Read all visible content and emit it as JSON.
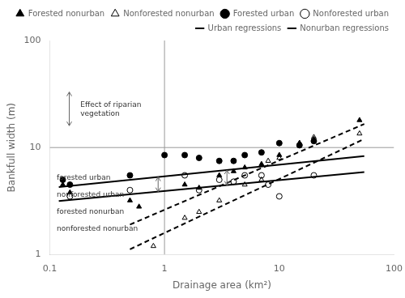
{
  "chart_data": {
    "type": "scatter",
    "x_label": "Drainage area (km²)",
    "y_label": "Bankfull width (m)",
    "log": true,
    "xlim": [
      0.1,
      100
    ],
    "ylim": [
      1,
      100
    ],
    "xticks": [
      0.1,
      1,
      10,
      100
    ],
    "yticks": [
      1,
      10,
      100
    ],
    "grid": false,
    "legend": "upper right",
    "series": [
      {
        "name": "Forested nonurban",
        "type": "scatter",
        "marker": "triangle",
        "color": "#000000",
        "x": [
          0.13,
          0.15,
          0.5,
          0.6,
          1.5,
          2.0,
          3.0,
          4.0,
          5.0,
          7.0,
          10.0,
          15.0,
          20.0,
          50.0
        ],
        "values": [
          4.5,
          3.8,
          3.2,
          2.8,
          4.5,
          4.2,
          5.5,
          6.0,
          6.5,
          7.0,
          8.5,
          11.0,
          12.0,
          18.0
        ]
      },
      {
        "name": "Nonforested nonurban",
        "type": "scatter",
        "marker": "open-triangle",
        "color": "#000000",
        "x": [
          0.8,
          1.5,
          2.0,
          3.0,
          5.0,
          7.0,
          8.0,
          10.0,
          15.0,
          20.0,
          50.0
        ],
        "values": [
          1.2,
          2.2,
          2.5,
          3.2,
          4.5,
          5.0,
          7.5,
          8.0,
          11.0,
          12.5,
          13.5
        ]
      },
      {
        "name": "Forested urban",
        "type": "scatter",
        "marker": "circle",
        "color": "#000000",
        "x": [
          0.13,
          0.15,
          0.5,
          1.0,
          1.5,
          2.0,
          3.0,
          4.0,
          5.0,
          7.0,
          10.0,
          15.0,
          20.0
        ],
        "values": [
          5.0,
          4.5,
          5.5,
          8.5,
          8.5,
          8.0,
          7.5,
          7.5,
          8.5,
          9.0,
          11.0,
          10.5,
          11.5
        ]
      },
      {
        "name": "Nonforested urban",
        "type": "scatter",
        "marker": "open-circle",
        "color": "#000000",
        "x": [
          0.15,
          0.5,
          1.5,
          2.0,
          3.0,
          4.0,
          5.0,
          7.0,
          8.0,
          10.0,
          20.0
        ],
        "values": [
          3.5,
          4.0,
          5.5,
          4.0,
          5.0,
          4.8,
          5.5,
          5.5,
          4.5,
          3.5,
          5.5
        ]
      },
      {
        "name": "Urban regressions",
        "type": "line",
        "line_style": "solid",
        "color": "#000000",
        "segments": [
          {
            "x": [
              0.12,
              55.0
            ],
            "values": [
              4.26579519,
              8.31763771
            ]
          },
          {
            "x": [
              0.12,
              55.0
            ],
            "values": [
              3.16227766,
              5.88843655
            ]
          }
        ]
      },
      {
        "name": "Nonurban regressions",
        "type": "line",
        "line_style": "dashed",
        "color": "#000000",
        "segments": [
          {
            "x": [
              0.5,
              55.0
            ],
            "values": [
              1.90546072,
              16.5958691
            ]
          },
          {
            "x": [
              0.5,
              55.0
            ],
            "values": [
              1.12201845,
              12.0226443
            ]
          }
        ]
      }
    ],
    "reference_lines": {
      "x": 1,
      "y": 10
    },
    "arrows": [
      {
        "x": 0.88,
        "y": [
          5.30024,
          3.87073
        ]
      },
      {
        "x": 3.5,
        "y": [
          6.16076,
          4.45272
        ]
      },
      {
        "x": 0.148,
        "y": [
          33.0,
          16.0
        ]
      }
    ],
    "annotations": [
      {
        "text": "Effect of riparian\nvegetation",
        "x": 0.185,
        "y": 22.5
      },
      {
        "text": "forested urban",
        "x": 0.115,
        "y": 5.2
      },
      {
        "text": "nonforested urban",
        "x": 0.115,
        "y": 3.6
      },
      {
        "text": "forested nonurban",
        "x": 0.115,
        "y": 2.5
      },
      {
        "text": "nonforested nonurban",
        "x": 0.115,
        "y": 1.75
      }
    ]
  }
}
